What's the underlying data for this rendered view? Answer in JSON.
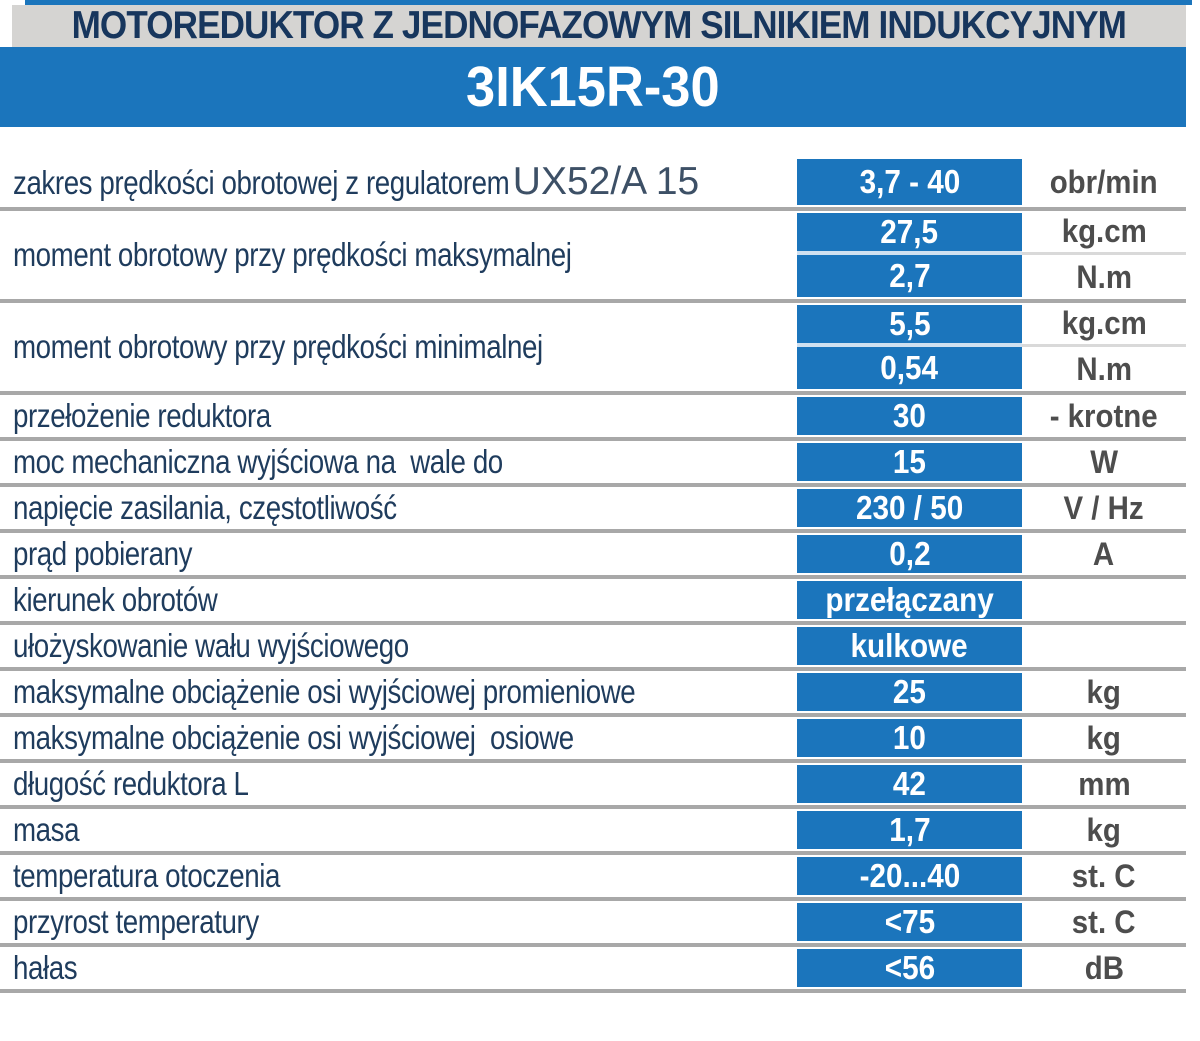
{
  "header": {
    "title": "MOTOREDUKTOR Z JEDNOFAZOWYM SILNIKIEM INDUKCYJNYM",
    "model": "3IK15R-30"
  },
  "colors": {
    "accent_blue": "#1b75bc",
    "label_navy": "#1f3c5d",
    "title_navy": "#17365d",
    "unit_gray": "#4d4d4d",
    "title_bar_gray": "#d5d4d2",
    "separator_gray": "#a8a8a8"
  },
  "table": {
    "rows": [
      {
        "label": "zakres prędkości obrotowej z regulatorem",
        "label_suffix": "UX52/A 15",
        "values": [
          {
            "value": "3,7 - 40",
            "unit": "obr/min"
          }
        ]
      },
      {
        "label": "moment obrotowy przy prędkości maksymalnej",
        "values": [
          {
            "value": "27,5",
            "unit": "kg.cm"
          },
          {
            "value": "2,7",
            "unit": "N.m"
          }
        ]
      },
      {
        "label": "moment obrotowy przy prędkości minimalnej",
        "values": [
          {
            "value": "5,5",
            "unit": "kg.cm"
          },
          {
            "value": "0,54",
            "unit": "N.m"
          }
        ]
      },
      {
        "label": "przełożenie reduktora",
        "values": [
          {
            "value": "30",
            "unit": "- krotne"
          }
        ]
      },
      {
        "label": "moc mechaniczna wyjściowa na  wale do",
        "values": [
          {
            "value": "15",
            "unit": "W"
          }
        ]
      },
      {
        "label": "napięcie zasilania, częstotliwość",
        "values": [
          {
            "value": "230 / 50",
            "unit": "V / Hz"
          }
        ]
      },
      {
        "label": "prąd pobierany",
        "values": [
          {
            "value": "0,2",
            "unit": "A"
          }
        ]
      },
      {
        "label": "kierunek obrotów",
        "values": [
          {
            "value": "przełączany",
            "unit": ""
          }
        ]
      },
      {
        "label": "ułożyskowanie wału wyjściowego",
        "values": [
          {
            "value": "kulkowe",
            "unit": ""
          }
        ]
      },
      {
        "label": "maksymalne obciążenie osi wyjściowej promieniowe",
        "values": [
          {
            "value": "25",
            "unit": "kg"
          }
        ]
      },
      {
        "label": "maksymalne obciążenie osi wyjściowej  osiowe",
        "values": [
          {
            "value": "10",
            "unit": "kg"
          }
        ]
      },
      {
        "label": "długość reduktora L",
        "values": [
          {
            "value": "42",
            "unit": "mm"
          }
        ]
      },
      {
        "label": "masa",
        "values": [
          {
            "value": "1,7",
            "unit": "kg"
          }
        ]
      },
      {
        "label": "temperatura otoczenia",
        "values": [
          {
            "value": "-20...40",
            "unit": "st. C"
          }
        ]
      },
      {
        "label": "przyrost temperatury",
        "values": [
          {
            "value": "<75",
            "unit": "st. C"
          }
        ]
      },
      {
        "label": "hałas",
        "values": [
          {
            "value": "<56",
            "unit": "dB"
          }
        ]
      }
    ]
  }
}
